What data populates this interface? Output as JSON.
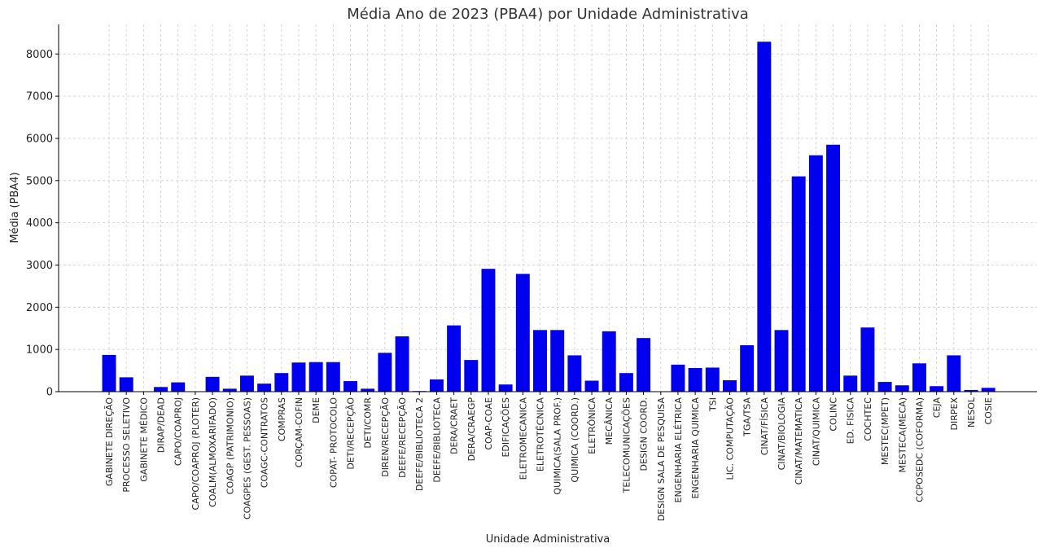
{
  "chart_data": {
    "type": "bar",
    "title": "Média Ano de 2023 (PBA4) por Unidade Administrativa",
    "xlabel": "Unidade Administrativa",
    "ylabel": "Média (PBA4)",
    "ylim": [
      0,
      8700
    ],
    "yticks": [
      0,
      1000,
      2000,
      3000,
      4000,
      5000,
      6000,
      7000,
      8000
    ],
    "grid": true,
    "bar_color": "#0000ee",
    "categories": [
      "GABINETE DIREÇÃO",
      "PROCESSO SELETIVO",
      "GABINETE MÉDICO",
      "DIRAP/DEAD",
      "CAPO/COAPROJ",
      "CAPO/COAPROJ (PLOTER)",
      "COALM(ALMOXARIFADO)",
      "COAGP (PATRIMONIO)",
      "COAGPES (GEST. PESSOAS)",
      "COAGC-CONTRATOS",
      "COMPRAS",
      "CORÇAM-COFIN",
      "DEME",
      "COPAT- PROTOCOLO",
      "DETI/RECEPÇÃO",
      "DETI/COMR",
      "DIREN/RECEPÇÃO",
      "DEEFE/RECEPÇÃO",
      "DEEFE/BIBLIOTECA 2",
      "DEEFE/BIBLIOTECA",
      "DERA/CRAET",
      "DERA/CRAEGP",
      "COAP-COAE",
      "EDIFICAÇÕES",
      "ELETROMECANICA",
      "ELETROTÉCNICA",
      "QUIMICA(SALA PROF.)",
      "QUIMICA (COORD.)",
      "ELETRÔNICA",
      "MECÂNICA",
      "TELECOMUNICAÇÕES",
      "DESIGN COORD.",
      "DESIGN SALA DE PESQUISA",
      "ENGENHARIA ELÉTRICA",
      "ENGENHARIA QUIMICA",
      "TSI",
      "LIC. COMPUTAÇÃO",
      "TGA/TSA",
      "CINAT/FÍSICA",
      "CINAT/BIOLOGIA",
      "CINAT/MATEMATICA",
      "CINAT/QUIMICA",
      "COLINC",
      "ED. FISICA",
      "COCHTEC",
      "MESTEC(MPET)",
      "MESTECA(MECA)",
      "CCPOSEDC (COFORMA)",
      "CEJA",
      "DIRPEX",
      "NESOL",
      "COSIE"
    ],
    "values": [
      870,
      340,
      5,
      110,
      220,
      5,
      350,
      70,
      380,
      190,
      440,
      690,
      700,
      700,
      250,
      70,
      920,
      1310,
      15,
      290,
      1570,
      750,
      2910,
      170,
      2790,
      1460,
      1460,
      860,
      260,
      1430,
      440,
      1270,
      5,
      640,
      560,
      570,
      270,
      1100,
      8290,
      1460,
      5100,
      5600,
      5850,
      380,
      1520,
      230,
      150,
      670,
      130,
      860,
      40,
      90
    ]
  }
}
